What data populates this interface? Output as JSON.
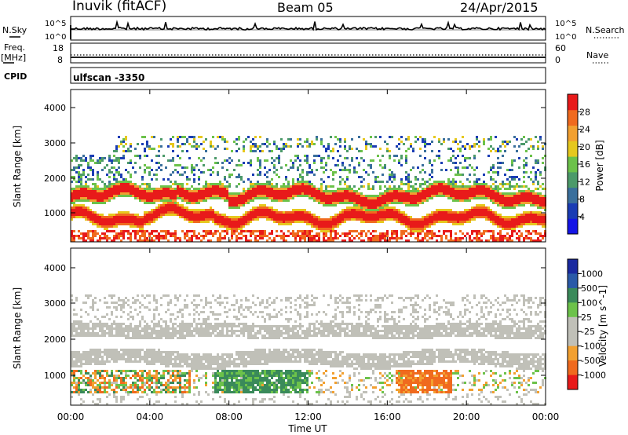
{
  "header": {
    "title": "Inuvik (fitACF)",
    "beam": "Beam 05",
    "date": "24/Apr/2015"
  },
  "strips": {
    "nsky_label": "N.Sky",
    "nsky_ticks": [
      "10^5",
      "10^0"
    ],
    "nsearch_label": "N.Search",
    "nsearch_ticks": [
      "10^5",
      "10^0"
    ],
    "freq_label_1": "Freq.",
    "freq_label_2": "[MHz]",
    "freq_ticks": [
      "18",
      "8"
    ],
    "nave_label": "Nave",
    "nave_ticks": [
      "60",
      "0"
    ],
    "cpid_label": "CPID",
    "cpid_value": "ulfscan -3350"
  },
  "colors": {
    "power": [
      "#1414e6",
      "#1a3cb4",
      "#3a6f9c",
      "#4c9a6a",
      "#6cc24a",
      "#e6c81e",
      "#f2a030",
      "#f06a1e",
      "#e81a1a"
    ],
    "velocity": [
      "#e81a1a",
      "#f06a1e",
      "#f2a030",
      "#c0c0b8",
      "#c0c0b8",
      "#6cc24a",
      "#3a8a5a",
      "#2a5aa8",
      "#1a2aa0"
    ]
  },
  "chart_data": [
    {
      "type": "heatmap",
      "title": "",
      "ylabel": "Slant Range [km]",
      "xlabel": "Time UT",
      "x_ticks": [
        "00:00",
        "04:00",
        "08:00",
        "12:00",
        "16:00",
        "20:00",
        "00:00"
      ],
      "y_ticks": [
        "1000",
        "2000",
        "3000",
        "4000"
      ],
      "ylim": [
        180,
        4600
      ],
      "colorbar_label": "Power [dB]",
      "colorbar_ticks": [
        "4",
        "8",
        "12",
        "16",
        "20",
        "24",
        "28"
      ],
      "clim": [
        0,
        32
      ]
    },
    {
      "type": "heatmap",
      "title": "",
      "ylabel": "Slant Range [km]",
      "xlabel": "Time UT",
      "x_ticks": [
        "00:00",
        "04:00",
        "08:00",
        "12:00",
        "16:00",
        "20:00",
        "00:00"
      ],
      "y_ticks": [
        "1000",
        "2000",
        "3000",
        "4000"
      ],
      "ylim": [
        180,
        4600
      ],
      "colorbar_label": "Velocity [m s^-1]",
      "colorbar_ticks": [
        "1000",
        "500",
        "100",
        "25",
        "-25",
        "-100",
        "-500",
        "-1000"
      ]
    }
  ]
}
